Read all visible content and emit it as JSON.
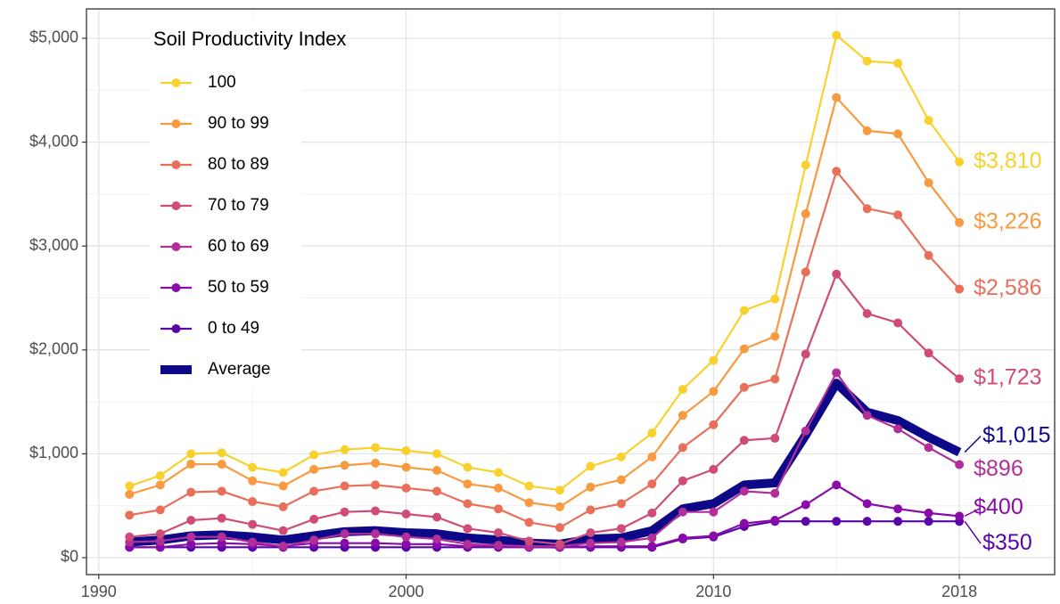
{
  "chart_data": {
    "type": "line",
    "legend_title": "Soil Productivity Index",
    "legend": "top-left",
    "grid": true,
    "x": [
      1991,
      1992,
      1993,
      1994,
      1995,
      1996,
      1997,
      1998,
      1999,
      2000,
      2001,
      2002,
      2003,
      2004,
      2005,
      2006,
      2007,
      2008,
      2009,
      2010,
      2011,
      2012,
      2013,
      2014,
      2015,
      2016,
      2017,
      2018
    ],
    "xlim": [
      1989.6,
      2021.1
    ],
    "xticks": [
      1990,
      2000,
      2010,
      2018
    ],
    "ylim": [
      -163,
      5283
    ],
    "yticks": [
      {
        "value": 0,
        "label": "$0"
      },
      {
        "value": 1000,
        "label": "$1,000"
      },
      {
        "value": 2000,
        "label": "$2,000"
      },
      {
        "value": 3000,
        "label": "$3,000"
      },
      {
        "value": 4000,
        "label": "$4,000"
      },
      {
        "value": 5000,
        "label": "$5,000"
      }
    ],
    "series": [
      {
        "name": "100",
        "color": "#f9d12e",
        "line_width": 2.2,
        "markers": true,
        "end_label": "$3,810",
        "values": [
          690,
          790,
          1000,
          1010,
          870,
          820,
          990,
          1040,
          1060,
          1030,
          1000,
          870,
          820,
          690,
          650,
          880,
          970,
          1200,
          1620,
          1900,
          2380,
          2490,
          3780,
          5030,
          4780,
          4760,
          4210,
          3810
        ]
      },
      {
        "name": "90 to 99",
        "color": "#f89a3f",
        "line_width": 2.2,
        "markers": true,
        "end_label": "$3,226",
        "values": [
          610,
          700,
          900,
          900,
          740,
          690,
          850,
          890,
          910,
          870,
          840,
          710,
          670,
          530,
          490,
          680,
          750,
          970,
          1370,
          1600,
          2010,
          2130,
          3310,
          4430,
          4110,
          4080,
          3610,
          3226
        ]
      },
      {
        "name": "80 to 89",
        "color": "#e8705b",
        "line_width": 2.2,
        "markers": true,
        "end_label": "$2,586",
        "values": [
          410,
          460,
          630,
          640,
          540,
          490,
          640,
          690,
          700,
          670,
          640,
          520,
          470,
          340,
          290,
          460,
          520,
          710,
          1060,
          1280,
          1640,
          1720,
          2750,
          3720,
          3360,
          3300,
          2910,
          2586
        ]
      },
      {
        "name": "70 to 79",
        "color": "#cf4c7a",
        "line_width": 2.2,
        "markers": true,
        "end_label": "$1,723",
        "values": [
          200,
          230,
          360,
          380,
          320,
          260,
          370,
          440,
          450,
          420,
          390,
          280,
          240,
          160,
          130,
          240,
          280,
          430,
          740,
          850,
          1130,
          1150,
          1960,
          2730,
          2350,
          2260,
          1970,
          1723
        ]
      },
      {
        "name": "60 to 69",
        "color": "#b22f99",
        "line_width": 2.2,
        "markers": true,
        "end_label": "$896",
        "values": [
          150,
          160,
          200,
          200,
          150,
          110,
          170,
          230,
          230,
          200,
          180,
          130,
          120,
          110,
          110,
          140,
          150,
          190,
          440,
          440,
          640,
          620,
          1220,
          1780,
          1370,
          1240,
          1060,
          896
        ]
      },
      {
        "name": "50 to 59",
        "color": "#8a0ca8",
        "line_width": 2.2,
        "markers": true,
        "end_label": "$400",
        "values": [
          100,
          100,
          130,
          140,
          130,
          110,
          140,
          140,
          140,
          130,
          130,
          110,
          110,
          100,
          100,
          110,
          110,
          110,
          190,
          210,
          330,
          360,
          510,
          700,
          520,
          470,
          430,
          400
        ]
      },
      {
        "name": "0 to 49",
        "color": "#5a05a8",
        "line_width": 2.2,
        "markers": true,
        "end_label": "$350",
        "values": [
          100,
          100,
          100,
          100,
          100,
          100,
          100,
          100,
          100,
          100,
          100,
          100,
          100,
          100,
          100,
          100,
          100,
          100,
          180,
          200,
          300,
          350,
          350,
          350,
          350,
          350,
          350,
          350
        ]
      },
      {
        "name": "Average",
        "color": "#0d0887",
        "line_width": 10,
        "markers": false,
        "end_label": "$1,015",
        "values": [
          150,
          170,
          210,
          220,
          200,
          170,
          210,
          250,
          260,
          240,
          230,
          190,
          170,
          140,
          130,
          180,
          190,
          260,
          470,
          520,
          700,
          720,
          1180,
          1680,
          1400,
          1320,
          1160,
          1015
        ]
      }
    ]
  }
}
